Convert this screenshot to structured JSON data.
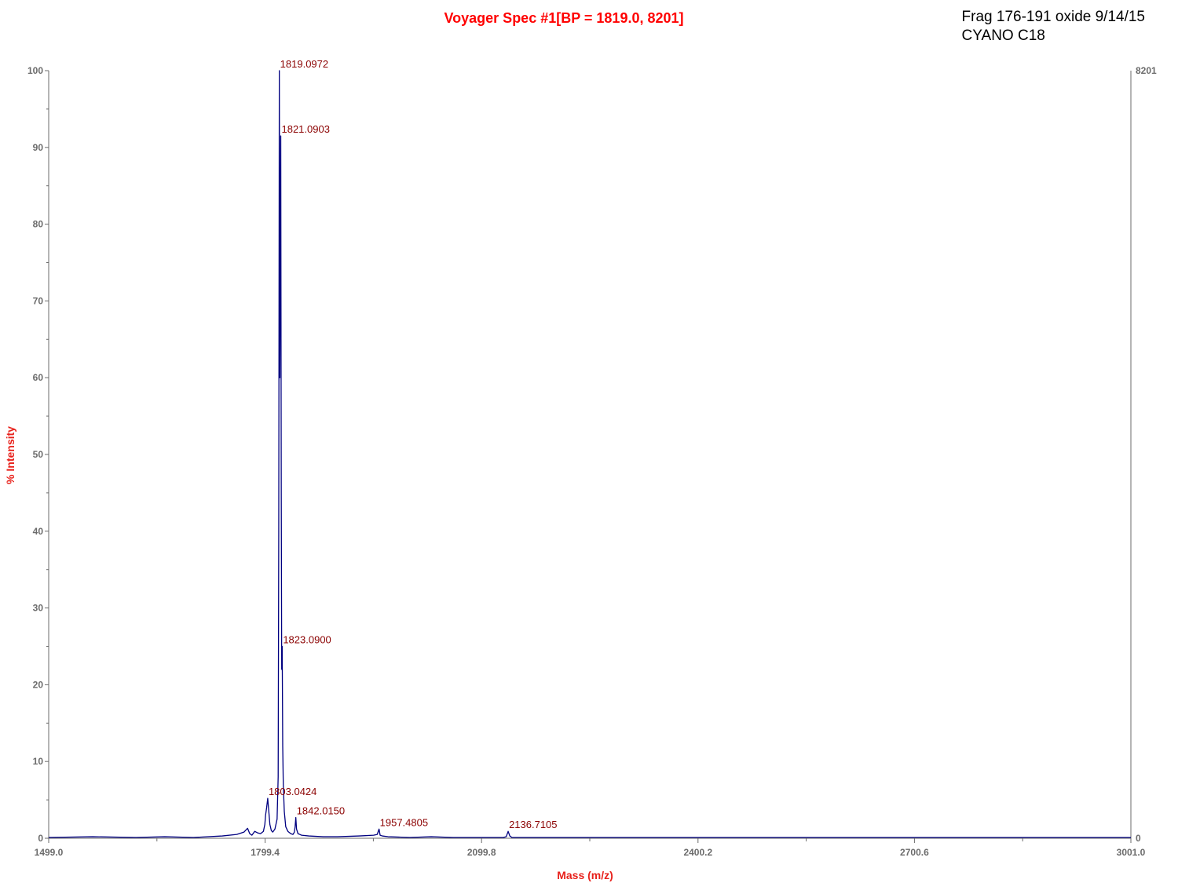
{
  "header": {
    "title": "Voyager Spec #1[BP = 1819.0, 8201]",
    "sample_line1": "Frag 176-191 oxide 9/14/15",
    "sample_line2": "CYANO C18"
  },
  "colors": {
    "title": "#ff0000",
    "axis_label": "#e8211b",
    "trace": "#000080",
    "peak_label": "#8b0000",
    "axis": "#6b6b6b"
  },
  "chart_data": {
    "type": "line",
    "title": "Voyager Spec #1[BP = 1819.0, 8201]",
    "xlabel": "Mass (m/z)",
    "ylabel": "% Intensity",
    "xlim": [
      1499.0,
      3001.0
    ],
    "ylim": [
      0,
      100
    ],
    "x_ticks": [
      "1499.0",
      "1799.4",
      "2099.8",
      "2400.2",
      "2700.6",
      "3001.0"
    ],
    "y_ticks": [
      "0",
      "10",
      "20",
      "30",
      "40",
      "50",
      "60",
      "70",
      "80",
      "90",
      "100"
    ],
    "right_axis": {
      "max_label": "8201",
      "min_label": "0"
    },
    "grid": false,
    "peaks": [
      {
        "mz": 1819.0972,
        "intensity": 100.0,
        "label": "1819.0972"
      },
      {
        "mz": 1821.0903,
        "intensity": 91.5,
        "label": "1821.0903"
      },
      {
        "mz": 1823.09,
        "intensity": 25.0,
        "label": "1823.0900"
      },
      {
        "mz": 1803.0424,
        "intensity": 5.2,
        "label": "1803.0424"
      },
      {
        "mz": 1842.015,
        "intensity": 2.7,
        "label": "1842.0150"
      },
      {
        "mz": 1957.4805,
        "intensity": 1.2,
        "label": "1957.4805"
      },
      {
        "mz": 2136.7105,
        "intensity": 0.9,
        "label": "2136.7105"
      }
    ],
    "series": [
      {
        "x": [
          1499.0,
          1560,
          1620,
          1660,
          1700,
          1740,
          1760,
          1770,
          1775,
          1778,
          1781,
          1785,
          1789,
          1793,
          1797,
          1799,
          1800,
          1801.5,
          1803.0,
          1804.5,
          1806,
          1808,
          1810,
          1813,
          1816,
          1817.5,
          1818.3,
          1819.1,
          1819.8,
          1820.4,
          1821.09,
          1821.8,
          1822.4,
          1823.09,
          1823.8,
          1824.6,
          1826,
          1828,
          1831,
          1835,
          1838,
          1840,
          1841,
          1842.0,
          1843,
          1845,
          1850,
          1860,
          1880,
          1900,
          1930,
          1950,
          1955,
          1957.5,
          1959,
          1962,
          1970,
          2000,
          2030,
          2060,
          2100,
          2130,
          2134,
          2136.7,
          2139,
          2142,
          2150,
          2200,
          2300,
          2400,
          2500,
          2600,
          2700,
          2800,
          2900,
          3001.0
        ],
        "y": [
          0.1,
          0.2,
          0.1,
          0.2,
          0.1,
          0.3,
          0.5,
          0.8,
          1.3,
          0.6,
          0.4,
          0.9,
          0.7,
          0.6,
          0.9,
          1.8,
          3.0,
          4.0,
          5.2,
          3.5,
          1.8,
          1.0,
          0.8,
          1.2,
          2.5,
          8.0,
          40.0,
          100.0,
          60.0,
          75.0,
          91.5,
          45.0,
          22.0,
          25.0,
          12.0,
          7.0,
          3.5,
          1.5,
          0.9,
          0.6,
          0.5,
          0.8,
          1.5,
          2.7,
          1.2,
          0.6,
          0.4,
          0.3,
          0.2,
          0.2,
          0.3,
          0.4,
          0.5,
          1.2,
          0.4,
          0.3,
          0.2,
          0.1,
          0.2,
          0.1,
          0.1,
          0.1,
          0.2,
          0.9,
          0.3,
          0.1,
          0.1,
          0.1,
          0.1,
          0.1,
          0.1,
          0.1,
          0.1,
          0.1,
          0.1,
          0.1
        ]
      }
    ]
  }
}
